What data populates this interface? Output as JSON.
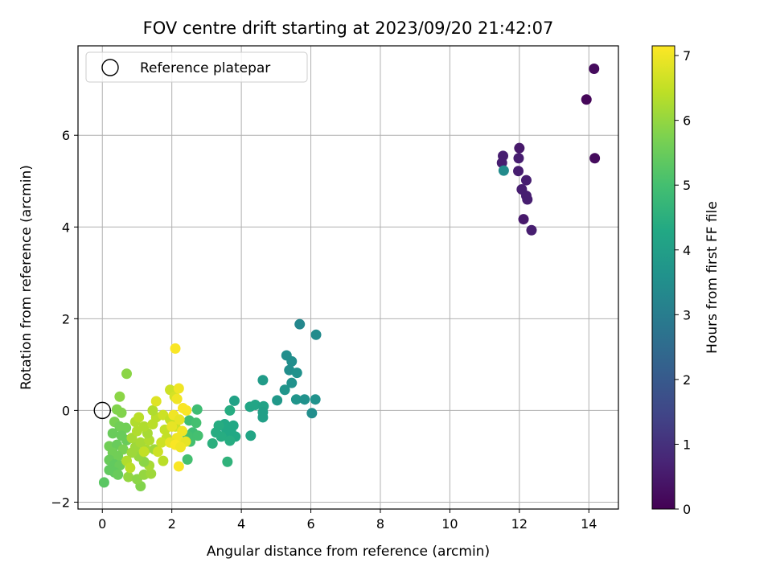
{
  "chart_data": {
    "type": "scatter",
    "title": "FOV centre drift starting at 2023/09/20 21:42:07",
    "xlabel": "Angular distance from reference (arcmin)",
    "ylabel": "Rotation from reference (arcmin)",
    "xlim": [
      -0.7,
      14.85
    ],
    "ylim": [
      -2.15,
      7.95
    ],
    "xticks": [
      0,
      2,
      4,
      6,
      8,
      10,
      12,
      14
    ],
    "yticks": [
      -2,
      0,
      2,
      4,
      6
    ],
    "grid": true,
    "legend": {
      "position": "top-left",
      "entries": [
        "Reference platepar"
      ]
    },
    "reference_point": {
      "x": 0,
      "y": 0,
      "label": "Reference platepar",
      "marker": "open-circle"
    },
    "colorbar": {
      "label": "Hours from first FF file",
      "colormap": "viridis",
      "range": [
        0,
        7.15
      ],
      "ticks": [
        0,
        1,
        2,
        3,
        4,
        5,
        6,
        7
      ]
    },
    "series": [
      {
        "columns": [
          "x",
          "y",
          "hours"
        ],
        "points": [
          [
            14.15,
            7.45,
            0.2
          ],
          [
            13.93,
            6.78,
            0.1
          ],
          [
            14.17,
            5.5,
            0.2
          ],
          [
            12.0,
            5.72,
            0.5
          ],
          [
            11.53,
            5.55,
            0.6
          ],
          [
            11.5,
            5.4,
            0.6
          ],
          [
            11.98,
            5.5,
            0.6
          ],
          [
            11.97,
            5.22,
            0.6
          ],
          [
            12.2,
            5.02,
            0.6
          ],
          [
            12.07,
            4.82,
            0.6
          ],
          [
            12.2,
            4.68,
            0.6
          ],
          [
            12.23,
            4.6,
            0.6
          ],
          [
            12.12,
            4.17,
            0.5
          ],
          [
            12.35,
            3.93,
            0.6
          ],
          [
            11.55,
            5.23,
            3.4
          ],
          [
            5.68,
            1.88,
            3.3
          ],
          [
            6.15,
            1.65,
            3.4
          ],
          [
            5.3,
            1.2,
            3.5
          ],
          [
            5.45,
            1.07,
            3.5
          ],
          [
            5.38,
            0.88,
            3.5
          ],
          [
            5.6,
            0.82,
            3.6
          ],
          [
            4.62,
            0.66,
            3.9
          ],
          [
            5.45,
            0.6,
            3.6
          ],
          [
            5.25,
            0.45,
            3.7
          ],
          [
            5.03,
            0.22,
            3.8
          ],
          [
            5.58,
            0.24,
            3.7
          ],
          [
            5.82,
            0.24,
            3.6
          ],
          [
            6.13,
            0.24,
            3.6
          ],
          [
            6.03,
            -0.06,
            3.5
          ],
          [
            3.8,
            0.21,
            4.1
          ],
          [
            4.25,
            0.08,
            4.2
          ],
          [
            4.4,
            0.12,
            4.2
          ],
          [
            4.64,
            0.09,
            4.1
          ],
          [
            4.62,
            -0.04,
            4.0
          ],
          [
            4.62,
            -0.15,
            4.0
          ],
          [
            3.67,
            0.0,
            4.4
          ],
          [
            3.52,
            -0.3,
            4.3
          ],
          [
            3.77,
            -0.33,
            4.3
          ],
          [
            3.57,
            -0.42,
            4.3
          ],
          [
            3.7,
            -0.45,
            4.3
          ],
          [
            3.6,
            -0.55,
            4.3
          ],
          [
            3.35,
            -0.33,
            4.4
          ],
          [
            3.27,
            -0.48,
            4.4
          ],
          [
            3.42,
            -0.57,
            4.4
          ],
          [
            3.83,
            -0.57,
            4.3
          ],
          [
            4.27,
            -0.55,
            4.2
          ],
          [
            3.67,
            -0.66,
            4.4
          ],
          [
            3.17,
            -0.72,
            4.5
          ],
          [
            3.6,
            -1.12,
            4.6
          ],
          [
            2.73,
            0.02,
            4.9
          ],
          [
            2.5,
            -0.22,
            4.9
          ],
          [
            2.7,
            -0.27,
            5.0
          ],
          [
            2.6,
            -0.48,
            4.9
          ],
          [
            2.45,
            -0.55,
            5.0
          ],
          [
            2.75,
            -0.55,
            5.0
          ],
          [
            2.53,
            -0.68,
            5.0
          ],
          [
            2.45,
            -1.07,
            5.0
          ],
          [
            0.7,
            0.8,
            5.9
          ],
          [
            0.5,
            0.3,
            5.9
          ],
          [
            0.42,
            0.02,
            5.8
          ],
          [
            0.55,
            -0.05,
            5.8
          ],
          [
            0.35,
            -0.25,
            5.7
          ],
          [
            0.5,
            -0.35,
            5.6
          ],
          [
            0.68,
            -0.38,
            5.6
          ],
          [
            0.3,
            -0.5,
            5.5
          ],
          [
            0.55,
            -0.55,
            5.5
          ],
          [
            0.7,
            -0.65,
            5.5
          ],
          [
            0.2,
            -0.78,
            5.6
          ],
          [
            0.42,
            -0.75,
            5.5
          ],
          [
            0.6,
            -0.85,
            5.7
          ],
          [
            0.3,
            -0.92,
            5.6
          ],
          [
            0.45,
            -1.0,
            5.6
          ],
          [
            0.2,
            -1.08,
            5.5
          ],
          [
            0.35,
            -1.18,
            5.4
          ],
          [
            0.5,
            -1.2,
            5.5
          ],
          [
            0.2,
            -1.3,
            5.4
          ],
          [
            0.35,
            -1.35,
            5.4
          ],
          [
            0.45,
            -1.4,
            5.5
          ],
          [
            0.05,
            -1.57,
            5.3
          ],
          [
            0.75,
            -1.45,
            6.0
          ],
          [
            1.1,
            -1.65,
            5.8
          ],
          [
            1.0,
            -1.5,
            5.9
          ],
          [
            1.2,
            -1.4,
            6.0
          ],
          [
            1.4,
            -1.38,
            6.1
          ],
          [
            1.35,
            -1.2,
            6.2
          ],
          [
            1.2,
            -1.12,
            5.9
          ],
          [
            1.05,
            -1.0,
            6.0
          ],
          [
            0.85,
            -0.92,
            6.1
          ],
          [
            0.95,
            -0.8,
            6.1
          ],
          [
            1.25,
            -0.85,
            6.2
          ],
          [
            1.5,
            -0.85,
            6.1
          ],
          [
            1.1,
            -0.7,
            6.2
          ],
          [
            1.35,
            -0.65,
            6.3
          ],
          [
            0.85,
            -0.6,
            6.2
          ],
          [
            1.0,
            -0.45,
            6.3
          ],
          [
            1.3,
            -0.5,
            6.2
          ],
          [
            0.95,
            -0.25,
            6.3
          ],
          [
            1.2,
            -0.35,
            6.3
          ],
          [
            1.45,
            -0.3,
            6.4
          ],
          [
            1.05,
            -0.15,
            6.4
          ],
          [
            1.55,
            -0.15,
            6.4
          ],
          [
            1.45,
            0.0,
            6.3
          ],
          [
            1.95,
            0.45,
            6.6
          ],
          [
            2.08,
            0.3,
            6.7
          ],
          [
            1.75,
            -0.1,
            6.6
          ],
          [
            1.95,
            -0.2,
            6.5
          ],
          [
            2.1,
            -0.35,
            6.6
          ],
          [
            1.8,
            -0.42,
            6.5
          ],
          [
            1.85,
            -0.6,
            6.5
          ],
          [
            1.7,
            -0.7,
            6.6
          ],
          [
            1.6,
            -0.9,
            6.6
          ],
          [
            1.2,
            -0.9,
            6.5
          ],
          [
            1.75,
            -1.1,
            6.4
          ],
          [
            0.7,
            -1.1,
            6.3
          ],
          [
            0.8,
            -1.25,
            6.4
          ],
          [
            1.55,
            0.2,
            6.8
          ],
          [
            2.2,
            0.48,
            7.0
          ],
          [
            2.15,
            0.25,
            7.0
          ],
          [
            2.32,
            0.05,
            7.1
          ],
          [
            2.42,
            0.0,
            7.1
          ],
          [
            2.1,
            1.35,
            7.1
          ],
          [
            2.05,
            -0.1,
            7.0
          ],
          [
            2.22,
            -0.2,
            6.9
          ],
          [
            2.0,
            -0.35,
            6.9
          ],
          [
            2.3,
            -0.45,
            7.0
          ],
          [
            2.15,
            -0.6,
            7.0
          ],
          [
            1.95,
            -0.7,
            6.9
          ],
          [
            2.4,
            -0.68,
            6.9
          ],
          [
            2.1,
            -0.75,
            7.1
          ],
          [
            2.25,
            -0.8,
            7.0
          ],
          [
            2.2,
            -1.22,
            7.1
          ]
        ]
      }
    ]
  }
}
